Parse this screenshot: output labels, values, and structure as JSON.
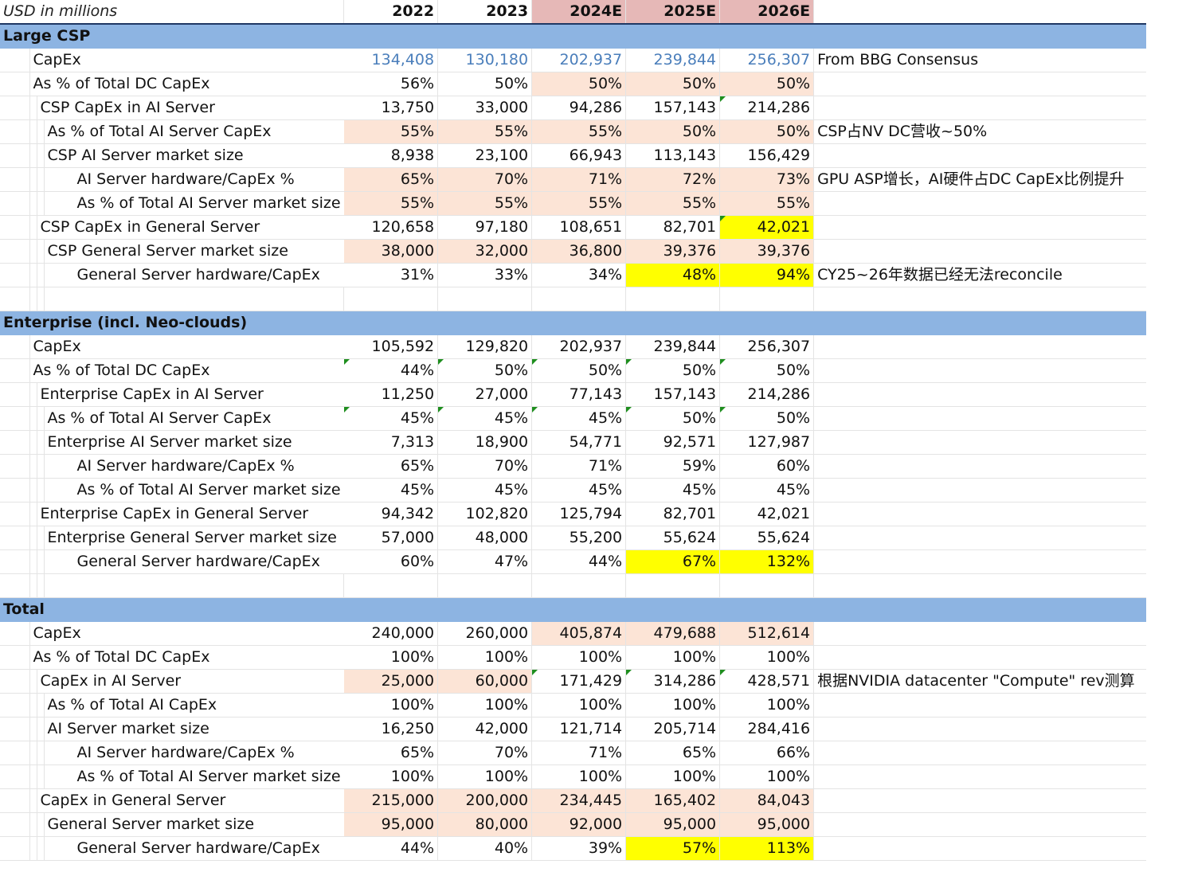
{
  "header": {
    "unit": "USD in millions",
    "years": [
      "2022",
      "2023",
      "2024E",
      "2025E",
      "2026E"
    ]
  },
  "sections": [
    {
      "title": "Large CSP",
      "rows": [
        {
          "label": "CapEx",
          "indent": 1,
          "values": [
            "134,408",
            "130,180",
            "202,937",
            "239,844",
            "256,307"
          ],
          "note": "From BBG Consensus"
        },
        {
          "label": "As % of Total DC CapEx",
          "indent": 1,
          "values": [
            "56%",
            "50%",
            "50%",
            "50%",
            "50%"
          ],
          "note": ""
        },
        {
          "label": "CSP CapEx in AI Server",
          "indent": 2,
          "values": [
            "13,750",
            "33,000",
            "94,286",
            "157,143",
            "214,286"
          ],
          "note": ""
        },
        {
          "label": "As % of Total AI Server CapEx",
          "indent": 3,
          "values": [
            "55%",
            "55%",
            "55%",
            "50%",
            "50%"
          ],
          "note": "CSP占NV DC营收~50%"
        },
        {
          "label": "CSP AI Server market size",
          "indent": 3,
          "values": [
            "8,938",
            "23,100",
            "66,943",
            "113,143",
            "156,429"
          ],
          "note": ""
        },
        {
          "label": "AI Server hardware/CapEx %",
          "indent": 4,
          "values": [
            "65%",
            "70%",
            "71%",
            "72%",
            "73%"
          ],
          "note": "GPU ASP增长，AI硬件占DC CapEx比例提升"
        },
        {
          "label": "As % of Total AI Server market size",
          "indent": 4,
          "values": [
            "55%",
            "55%",
            "55%",
            "55%",
            "55%"
          ],
          "note": ""
        },
        {
          "label": "CSP CapEx in General Server",
          "indent": 2,
          "values": [
            "120,658",
            "97,180",
            "108,651",
            "82,701",
            "42,021"
          ],
          "note": ""
        },
        {
          "label": "CSP General Server market size",
          "indent": 3,
          "values": [
            "38,000",
            "32,000",
            "36,800",
            "39,376",
            "39,376"
          ],
          "note": ""
        },
        {
          "label": "General Server hardware/CapEx",
          "indent": 4,
          "values": [
            "31%",
            "33%",
            "34%",
            "48%",
            "94%"
          ],
          "note": "CY25~26年数据已经无法reconcile"
        }
      ]
    },
    {
      "title": "Enterprise (incl. Neo-clouds)",
      "rows": [
        {
          "label": "CapEx",
          "indent": 1,
          "values": [
            "105,592",
            "129,820",
            "202,937",
            "239,844",
            "256,307"
          ],
          "note": ""
        },
        {
          "label": "As % of Total DC CapEx",
          "indent": 1,
          "values": [
            "44%",
            "50%",
            "50%",
            "50%",
            "50%"
          ],
          "note": ""
        },
        {
          "label": "Enterprise CapEx in AI Server",
          "indent": 2,
          "values": [
            "11,250",
            "27,000",
            "77,143",
            "157,143",
            "214,286"
          ],
          "note": ""
        },
        {
          "label": "As % of Total AI Server CapEx",
          "indent": 3,
          "values": [
            "45%",
            "45%",
            "45%",
            "50%",
            "50%"
          ],
          "note": ""
        },
        {
          "label": "Enterprise AI Server market size",
          "indent": 3,
          "values": [
            "7,313",
            "18,900",
            "54,771",
            "92,571",
            "127,987"
          ],
          "note": ""
        },
        {
          "label": "AI Server hardware/CapEx %",
          "indent": 4,
          "values": [
            "65%",
            "70%",
            "71%",
            "59%",
            "60%"
          ],
          "note": ""
        },
        {
          "label": "As % of Total AI Server market size",
          "indent": 4,
          "values": [
            "45%",
            "45%",
            "45%",
            "45%",
            "45%"
          ],
          "note": ""
        },
        {
          "label": "Enterprise CapEx in General Server",
          "indent": 2,
          "values": [
            "94,342",
            "102,820",
            "125,794",
            "82,701",
            "42,021"
          ],
          "note": ""
        },
        {
          "label": "Enterprise General Server market size",
          "indent": 3,
          "values": [
            "57,000",
            "48,000",
            "55,200",
            "55,624",
            "55,624"
          ],
          "note": ""
        },
        {
          "label": "General Server hardware/CapEx",
          "indent": 4,
          "values": [
            "60%",
            "47%",
            "44%",
            "67%",
            "132%"
          ],
          "note": ""
        }
      ]
    },
    {
      "title": "Total",
      "rows": [
        {
          "label": "CapEx",
          "indent": 1,
          "values": [
            "240,000",
            "260,000",
            "405,874",
            "479,688",
            "512,614"
          ],
          "note": ""
        },
        {
          "label": "As % of Total DC CapEx",
          "indent": 1,
          "values": [
            "100%",
            "100%",
            "100%",
            "100%",
            "100%"
          ],
          "note": ""
        },
        {
          "label": "CapEx in AI Server",
          "indent": 2,
          "values": [
            "25,000",
            "60,000",
            "171,429",
            "314,286",
            "428,571"
          ],
          "note": "根据NVIDIA datacenter \"Compute\" rev测算"
        },
        {
          "label": "As % of Total AI CapEx",
          "indent": 3,
          "values": [
            "100%",
            "100%",
            "100%",
            "100%",
            "100%"
          ],
          "note": ""
        },
        {
          "label": "AI Server market size",
          "indent": 3,
          "values": [
            "16,250",
            "42,000",
            "121,714",
            "205,714",
            "284,416"
          ],
          "note": ""
        },
        {
          "label": "AI Server hardware/CapEx %",
          "indent": 4,
          "values": [
            "65%",
            "70%",
            "71%",
            "65%",
            "66%"
          ],
          "note": ""
        },
        {
          "label": "As % of Total AI Server market size",
          "indent": 4,
          "values": [
            "100%",
            "100%",
            "100%",
            "100%",
            "100%"
          ],
          "note": ""
        },
        {
          "label": "CapEx in General Server",
          "indent": 2,
          "values": [
            "215,000",
            "200,000",
            "234,445",
            "165,402",
            "84,043"
          ],
          "note": ""
        },
        {
          "label": "General Server market size",
          "indent": 3,
          "values": [
            "95,000",
            "80,000",
            "92,000",
            "95,000",
            "95,000"
          ],
          "note": ""
        },
        {
          "label": "General Server hardware/CapEx",
          "indent": 4,
          "values": [
            "44%",
            "40%",
            "39%",
            "57%",
            "113%"
          ],
          "note": ""
        }
      ]
    }
  ],
  "colors": {
    "section_band": "#8db4e2",
    "estimate_header": "#e6b8b7",
    "input_fill": "#fce4d6",
    "highlight": "#ffff00",
    "consensus_text": "#4a7ebb",
    "comment_marker": "#1e8e1e"
  }
}
